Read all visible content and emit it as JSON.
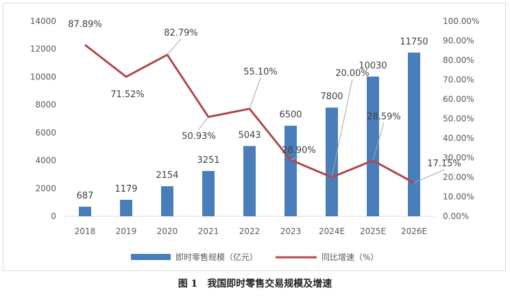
{
  "chart_data": {
    "type": "bar",
    "categories": [
      "2018",
      "2019",
      "2020",
      "2021",
      "2022",
      "2023",
      "2024E",
      "2025E",
      "2026E"
    ],
    "series": [
      {
        "name": "即时零售规模（亿元）",
        "type": "bar",
        "axis": "left",
        "color": "#4a7ebb",
        "values": [
          687,
          1179,
          2154,
          3251,
          5043,
          6500,
          7800,
          10030,
          11750
        ],
        "labels": [
          "687",
          "1179",
          "2154",
          "3251",
          "5043",
          "6500",
          "7800",
          "10030",
          "11750"
        ]
      },
      {
        "name": "同比增速（%）",
        "type": "line",
        "axis": "right",
        "color": "#b04848",
        "values": [
          87.89,
          71.52,
          82.79,
          50.93,
          55.1,
          28.9,
          20.0,
          28.59,
          17.15
        ],
        "labels": [
          "87.89%",
          "71.52%",
          "82.79%",
          "50.93%",
          "55.10%",
          "28.90%",
          "20.00%",
          "28.59%",
          "17.15%"
        ]
      }
    ],
    "y_left": {
      "min": 0,
      "max": 14000,
      "step": 2000,
      "tick_labels": [
        "0",
        "2000",
        "4000",
        "6000",
        "8000",
        "10000",
        "12000",
        "14000"
      ]
    },
    "y_right": {
      "min": 0,
      "max": 100,
      "step": 10,
      "tick_labels": [
        "0.00%",
        "10.00%",
        "20.00%",
        "30.00%",
        "40.00%",
        "50.00%",
        "60.00%",
        "70.00%",
        "80.00%",
        "90.00%",
        "100.00%"
      ]
    },
    "grid": false,
    "legend_position": "bottom"
  },
  "caption": {
    "number": "图 1",
    "text": "我国即时零售交易规模及增速"
  }
}
